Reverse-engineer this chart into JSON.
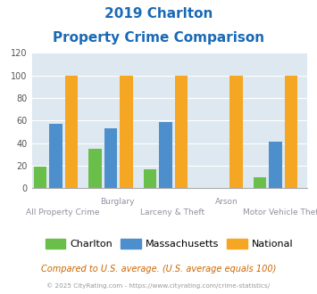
{
  "title_line1": "2019 Charlton",
  "title_line2": "Property Crime Comparison",
  "charlton": [
    19,
    35,
    17,
    0,
    10
  ],
  "massachusetts": [
    57,
    53,
    59,
    0,
    41
  ],
  "national": [
    100,
    100,
    100,
    100,
    100
  ],
  "charlton_color": "#6abf4b",
  "massachusetts_color": "#4d8fcc",
  "national_color": "#f5a623",
  "ylim": [
    0,
    120
  ],
  "yticks": [
    0,
    20,
    40,
    60,
    80,
    100,
    120
  ],
  "plot_bg": "#dde8f0",
  "legend_labels": [
    "Charlton",
    "Massachusetts",
    "National"
  ],
  "footnote1": "Compared to U.S. average. (U.S. average equals 100)",
  "footnote2": "© 2025 CityRating.com - https://www.cityrating.com/crime-statistics/",
  "title_color": "#1a69b5",
  "footnote1_color": "#cc6600",
  "footnote2_color": "#999999",
  "xlabel_color": "#9090a0"
}
